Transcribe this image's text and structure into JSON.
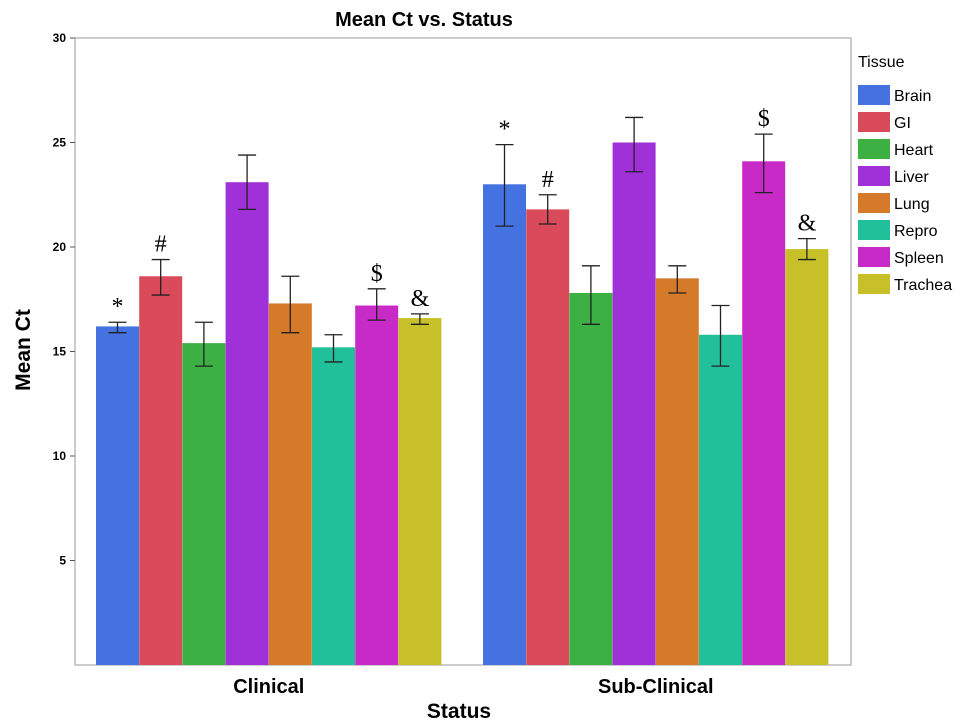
{
  "chart_data": {
    "type": "bar",
    "title": "Mean Ct vs. Status",
    "xlabel": "Status",
    "ylabel": "Mean Ct",
    "ylim": [
      0,
      30
    ],
    "yticks": [
      "5",
      "10",
      "15",
      "20",
      "25",
      "30"
    ],
    "grid": false,
    "legend_title": "Tissue",
    "legend_position": "right",
    "categories": [
      "Clinical",
      "Sub-Clinical"
    ],
    "series": [
      {
        "name": "Brain",
        "color": "#4472e0",
        "values": [
          16.2,
          23.0
        ],
        "err_low": [
          15.9,
          21.0
        ],
        "err_high": [
          16.4,
          24.9
        ],
        "annotation": [
          "*",
          "*"
        ]
      },
      {
        "name": "GI",
        "color": "#d94a5a",
        "values": [
          18.6,
          21.8
        ],
        "err_low": [
          17.7,
          21.1
        ],
        "err_high": [
          19.4,
          22.5
        ],
        "annotation": [
          "#",
          "#"
        ]
      },
      {
        "name": "Heart",
        "color": "#3cb043",
        "values": [
          15.4,
          17.8
        ],
        "err_low": [
          14.3,
          16.3
        ],
        "err_high": [
          16.4,
          19.1
        ],
        "annotation": [
          "",
          ""
        ]
      },
      {
        "name": "Liver",
        "color": "#a030d8",
        "values": [
          23.1,
          25.0
        ],
        "err_low": [
          21.8,
          23.6
        ],
        "err_high": [
          24.4,
          26.2
        ],
        "annotation": [
          "",
          ""
        ]
      },
      {
        "name": "Lung",
        "color": "#d47a28",
        "values": [
          17.3,
          18.5
        ],
        "err_low": [
          15.9,
          17.8
        ],
        "err_high": [
          18.6,
          19.1
        ],
        "annotation": [
          "",
          ""
        ]
      },
      {
        "name": "Repro",
        "color": "#22c09a",
        "values": [
          15.2,
          15.8
        ],
        "err_low": [
          14.5,
          14.3
        ],
        "err_high": [
          15.8,
          17.2
        ],
        "annotation": [
          "",
          ""
        ]
      },
      {
        "name": "Spleen",
        "color": "#c82ac8",
        "values": [
          17.2,
          24.1
        ],
        "err_low": [
          16.5,
          22.6
        ],
        "err_high": [
          18.0,
          25.4
        ],
        "annotation": [
          "$",
          "$"
        ]
      },
      {
        "name": "Trachea",
        "color": "#c8c028",
        "values": [
          16.6,
          19.9
        ],
        "err_low": [
          16.3,
          19.4
        ],
        "err_high": [
          16.8,
          20.4
        ],
        "annotation": [
          "&",
          "&"
        ]
      }
    ]
  }
}
